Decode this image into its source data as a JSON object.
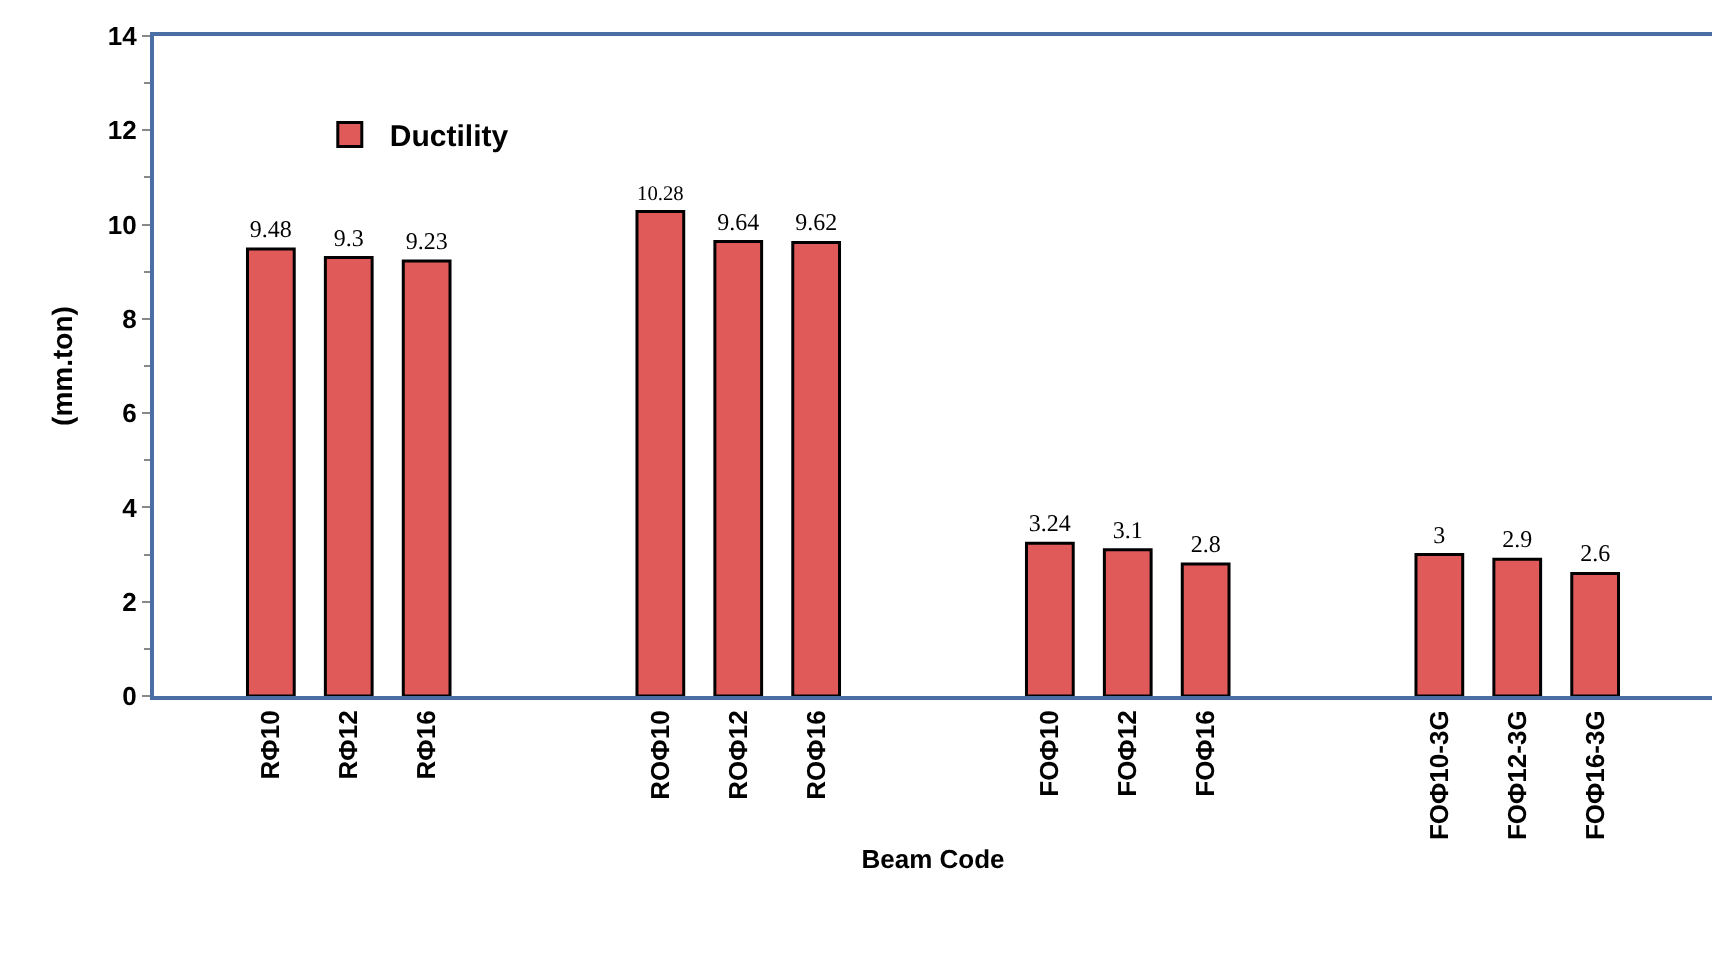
{
  "chart_data": {
    "type": "bar",
    "xlabel": "Beam Code",
    "ylabel": "(mm.ton)",
    "categories": [
      null,
      "RΦ10",
      "RΦ12",
      "RΦ16",
      null,
      null,
      "ROΦ10",
      "ROΦ12",
      "ROΦ16",
      null,
      null,
      "FOΦ10",
      "FOΦ12",
      "FOΦ16",
      null,
      null,
      "FOΦ10-3G",
      "FOΦ12-3G",
      "FOΦ16-3G",
      null
    ],
    "series": [
      {
        "name": "Ductility",
        "color": "#e05a5a",
        "values": [
          null,
          9.48,
          9.3,
          9.23,
          null,
          null,
          10.28,
          9.64,
          9.62,
          null,
          null,
          3.24,
          3.1,
          2.8,
          null,
          null,
          3,
          2.9,
          2.6,
          null
        ]
      }
    ],
    "ylim": [
      0,
      14
    ],
    "yticks": [
      0,
      2,
      4,
      6,
      8,
      10,
      12,
      14
    ],
    "data_labels": true,
    "legend": "top left",
    "grid": false
  }
}
